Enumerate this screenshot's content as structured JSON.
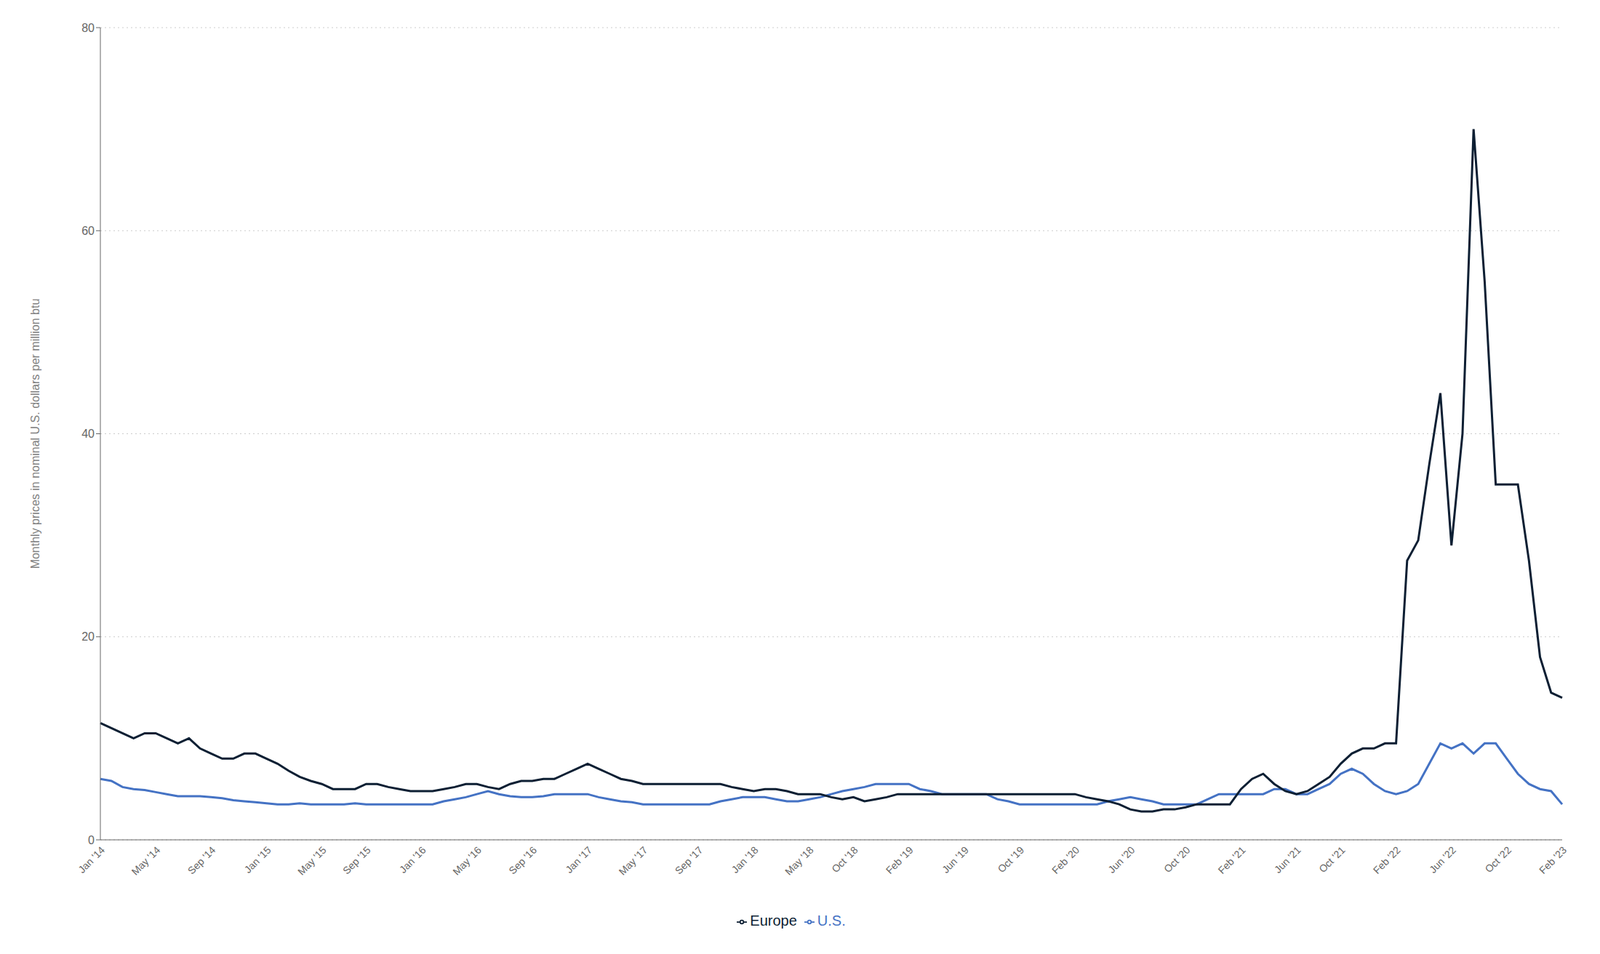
{
  "chart_data": {
    "type": "line",
    "y_label": "Monthly prices in nominal U.S. dollars per million btu",
    "categories": [
      "Jan '14",
      null,
      null,
      null,
      null,
      "May '14",
      null,
      null,
      null,
      null,
      "Sep '14",
      null,
      null,
      null,
      null,
      "Jan '15",
      null,
      null,
      null,
      null,
      "May '15",
      null,
      null,
      null,
      "Sep '15",
      null,
      null,
      null,
      null,
      "Jan '16",
      null,
      null,
      null,
      null,
      "May '16",
      null,
      null,
      null,
      null,
      "Sep '16",
      null,
      null,
      null,
      null,
      "Jan '17",
      null,
      null,
      null,
      null,
      "May '17",
      null,
      null,
      null,
      null,
      "Sep '17",
      null,
      null,
      null,
      null,
      "Jan '18",
      null,
      null,
      null,
      null,
      "May '18",
      null,
      null,
      null,
      "Oct '18",
      null,
      null,
      null,
      null,
      "Feb '19",
      null,
      null,
      null,
      null,
      "Jun '19",
      null,
      null,
      null,
      null,
      "Oct '19",
      null,
      null,
      null,
      null,
      "Feb '20",
      null,
      null,
      null,
      null,
      "Jun '20",
      null,
      null,
      null,
      null,
      "Oct '20",
      null,
      null,
      null,
      null,
      "Feb '21",
      null,
      null,
      null,
      null,
      "Jun '21",
      null,
      null,
      null,
      "Oct '21",
      null,
      null,
      null,
      null,
      "Feb '22",
      null,
      null,
      null,
      null,
      "Jun '22",
      null,
      null,
      null,
      null,
      "Oct '22",
      null,
      null,
      null,
      null,
      "Feb '23"
    ],
    "series": [
      {
        "name": "U.S.",
        "color": "#4472c4",
        "values": [
          6.0,
          5.8,
          5.2,
          5.0,
          4.9,
          4.7,
          4.5,
          4.3,
          4.3,
          4.3,
          4.2,
          4.1,
          3.9,
          3.8,
          3.7,
          3.6,
          3.5,
          3.5,
          3.6,
          3.5,
          3.5,
          3.5,
          3.5,
          3.6,
          3.5,
          3.5,
          3.5,
          3.5,
          3.5,
          3.5,
          3.5,
          3.8,
          4.0,
          4.2,
          4.5,
          4.8,
          4.5,
          4.3,
          4.2,
          4.2,
          4.3,
          4.5,
          4.5,
          4.5,
          4.5,
          4.2,
          4.0,
          3.8,
          3.7,
          3.5,
          3.5,
          3.5,
          3.5,
          3.5,
          3.5,
          3.5,
          3.8,
          4.0,
          4.2,
          4.2,
          4.2,
          4.0,
          3.8,
          3.8,
          4.0,
          4.2,
          4.5,
          4.8,
          5.0,
          5.2,
          5.5,
          5.5,
          5.5,
          5.5,
          5.0,
          4.8,
          4.5,
          4.5,
          4.5,
          4.5,
          4.5,
          4.0,
          3.8,
          3.5,
          3.5,
          3.5,
          3.5,
          3.5,
          3.5,
          3.5,
          3.5,
          3.8,
          4.0,
          4.2,
          4.0,
          3.8,
          3.5,
          3.5,
          3.5,
          3.5,
          4.0,
          4.5,
          4.5,
          4.5,
          4.5,
          4.5,
          5.0,
          5.0,
          4.5,
          4.5,
          5.0,
          5.5,
          6.5,
          7.0,
          6.5,
          5.5,
          4.8,
          4.5,
          4.8,
          5.5,
          7.5,
          9.5,
          9.0,
          9.5,
          8.5,
          9.5,
          9.5,
          8.0,
          6.5,
          5.5,
          5.0,
          4.8,
          3.5
        ]
      },
      {
        "name": "Europe",
        "color": "#0d1f33",
        "values": [
          11.5,
          11.0,
          10.5,
          10.0,
          10.5,
          10.5,
          10.0,
          9.5,
          10.0,
          9.0,
          8.5,
          8.0,
          8.0,
          8.5,
          8.5,
          8.0,
          7.5,
          6.8,
          6.2,
          5.8,
          5.5,
          5.0,
          5.0,
          5.0,
          5.5,
          5.5,
          5.2,
          5.0,
          4.8,
          4.8,
          4.8,
          5.0,
          5.2,
          5.5,
          5.5,
          5.2,
          5.0,
          5.5,
          5.8,
          5.8,
          6.0,
          6.0,
          6.5,
          7.0,
          7.5,
          7.0,
          6.5,
          6.0,
          5.8,
          5.5,
          5.5,
          5.5,
          5.5,
          5.5,
          5.5,
          5.5,
          5.5,
          5.2,
          5.0,
          4.8,
          5.0,
          5.0,
          4.8,
          4.5,
          4.5,
          4.5,
          4.2,
          4.0,
          4.2,
          3.8,
          4.0,
          4.2,
          4.5,
          4.5,
          4.5,
          4.5,
          4.5,
          4.5,
          4.5,
          4.5,
          4.5,
          4.5,
          4.5,
          4.5,
          4.5,
          4.5,
          4.5,
          4.5,
          4.5,
          4.2,
          4.0,
          3.8,
          3.5,
          3.0,
          2.8,
          2.8,
          3.0,
          3.0,
          3.2,
          3.5,
          3.5,
          3.5,
          3.5,
          5.0,
          6.0,
          6.5,
          5.5,
          4.8,
          4.5,
          4.8,
          5.5,
          6.2,
          7.5,
          8.5,
          9.0,
          9.0,
          9.5,
          9.5,
          27.5,
          29.5,
          37.0,
          44.0,
          29.0,
          40.0,
          70.0,
          55.0,
          35.0,
          35.0,
          35.0,
          27.5,
          18.0,
          14.5,
          14.0
        ]
      }
    ],
    "ylim": [
      0,
      80
    ],
    "yticks": [
      0,
      20,
      40,
      60,
      80
    ],
    "grid": true,
    "legend": "bottom"
  }
}
